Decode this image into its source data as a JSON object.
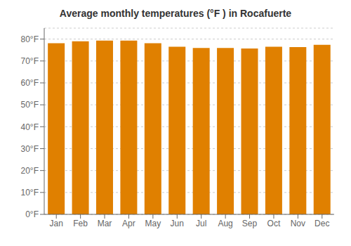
{
  "chart_data": {
    "type": "bar",
    "title": "Average monthly temperatures (°F ) in Rocafuerte",
    "categories": [
      "Jan",
      "Feb",
      "Mar",
      "Apr",
      "May",
      "Jun",
      "Jul",
      "Aug",
      "Sep",
      "Oct",
      "Nov",
      "Dec"
    ],
    "values": [
      78.1,
      79.0,
      79.3,
      79.3,
      78.1,
      76.5,
      75.9,
      75.9,
      75.7,
      76.5,
      76.3,
      77.4
    ],
    "color": "#E08000",
    "ylim": [
      0,
      85
    ],
    "yticks": [
      {
        "value": 0,
        "label": "0°F"
      },
      {
        "value": 10,
        "label": "10°F"
      },
      {
        "value": 20,
        "label": "20°F"
      },
      {
        "value": 30,
        "label": "30°F"
      },
      {
        "value": 40,
        "label": "40°F"
      },
      {
        "value": 50,
        "label": "50°F"
      },
      {
        "value": 60,
        "label": "60°F"
      },
      {
        "value": 70,
        "label": "70°F"
      },
      {
        "value": 80,
        "label": "80°F"
      }
    ],
    "grid": true
  }
}
